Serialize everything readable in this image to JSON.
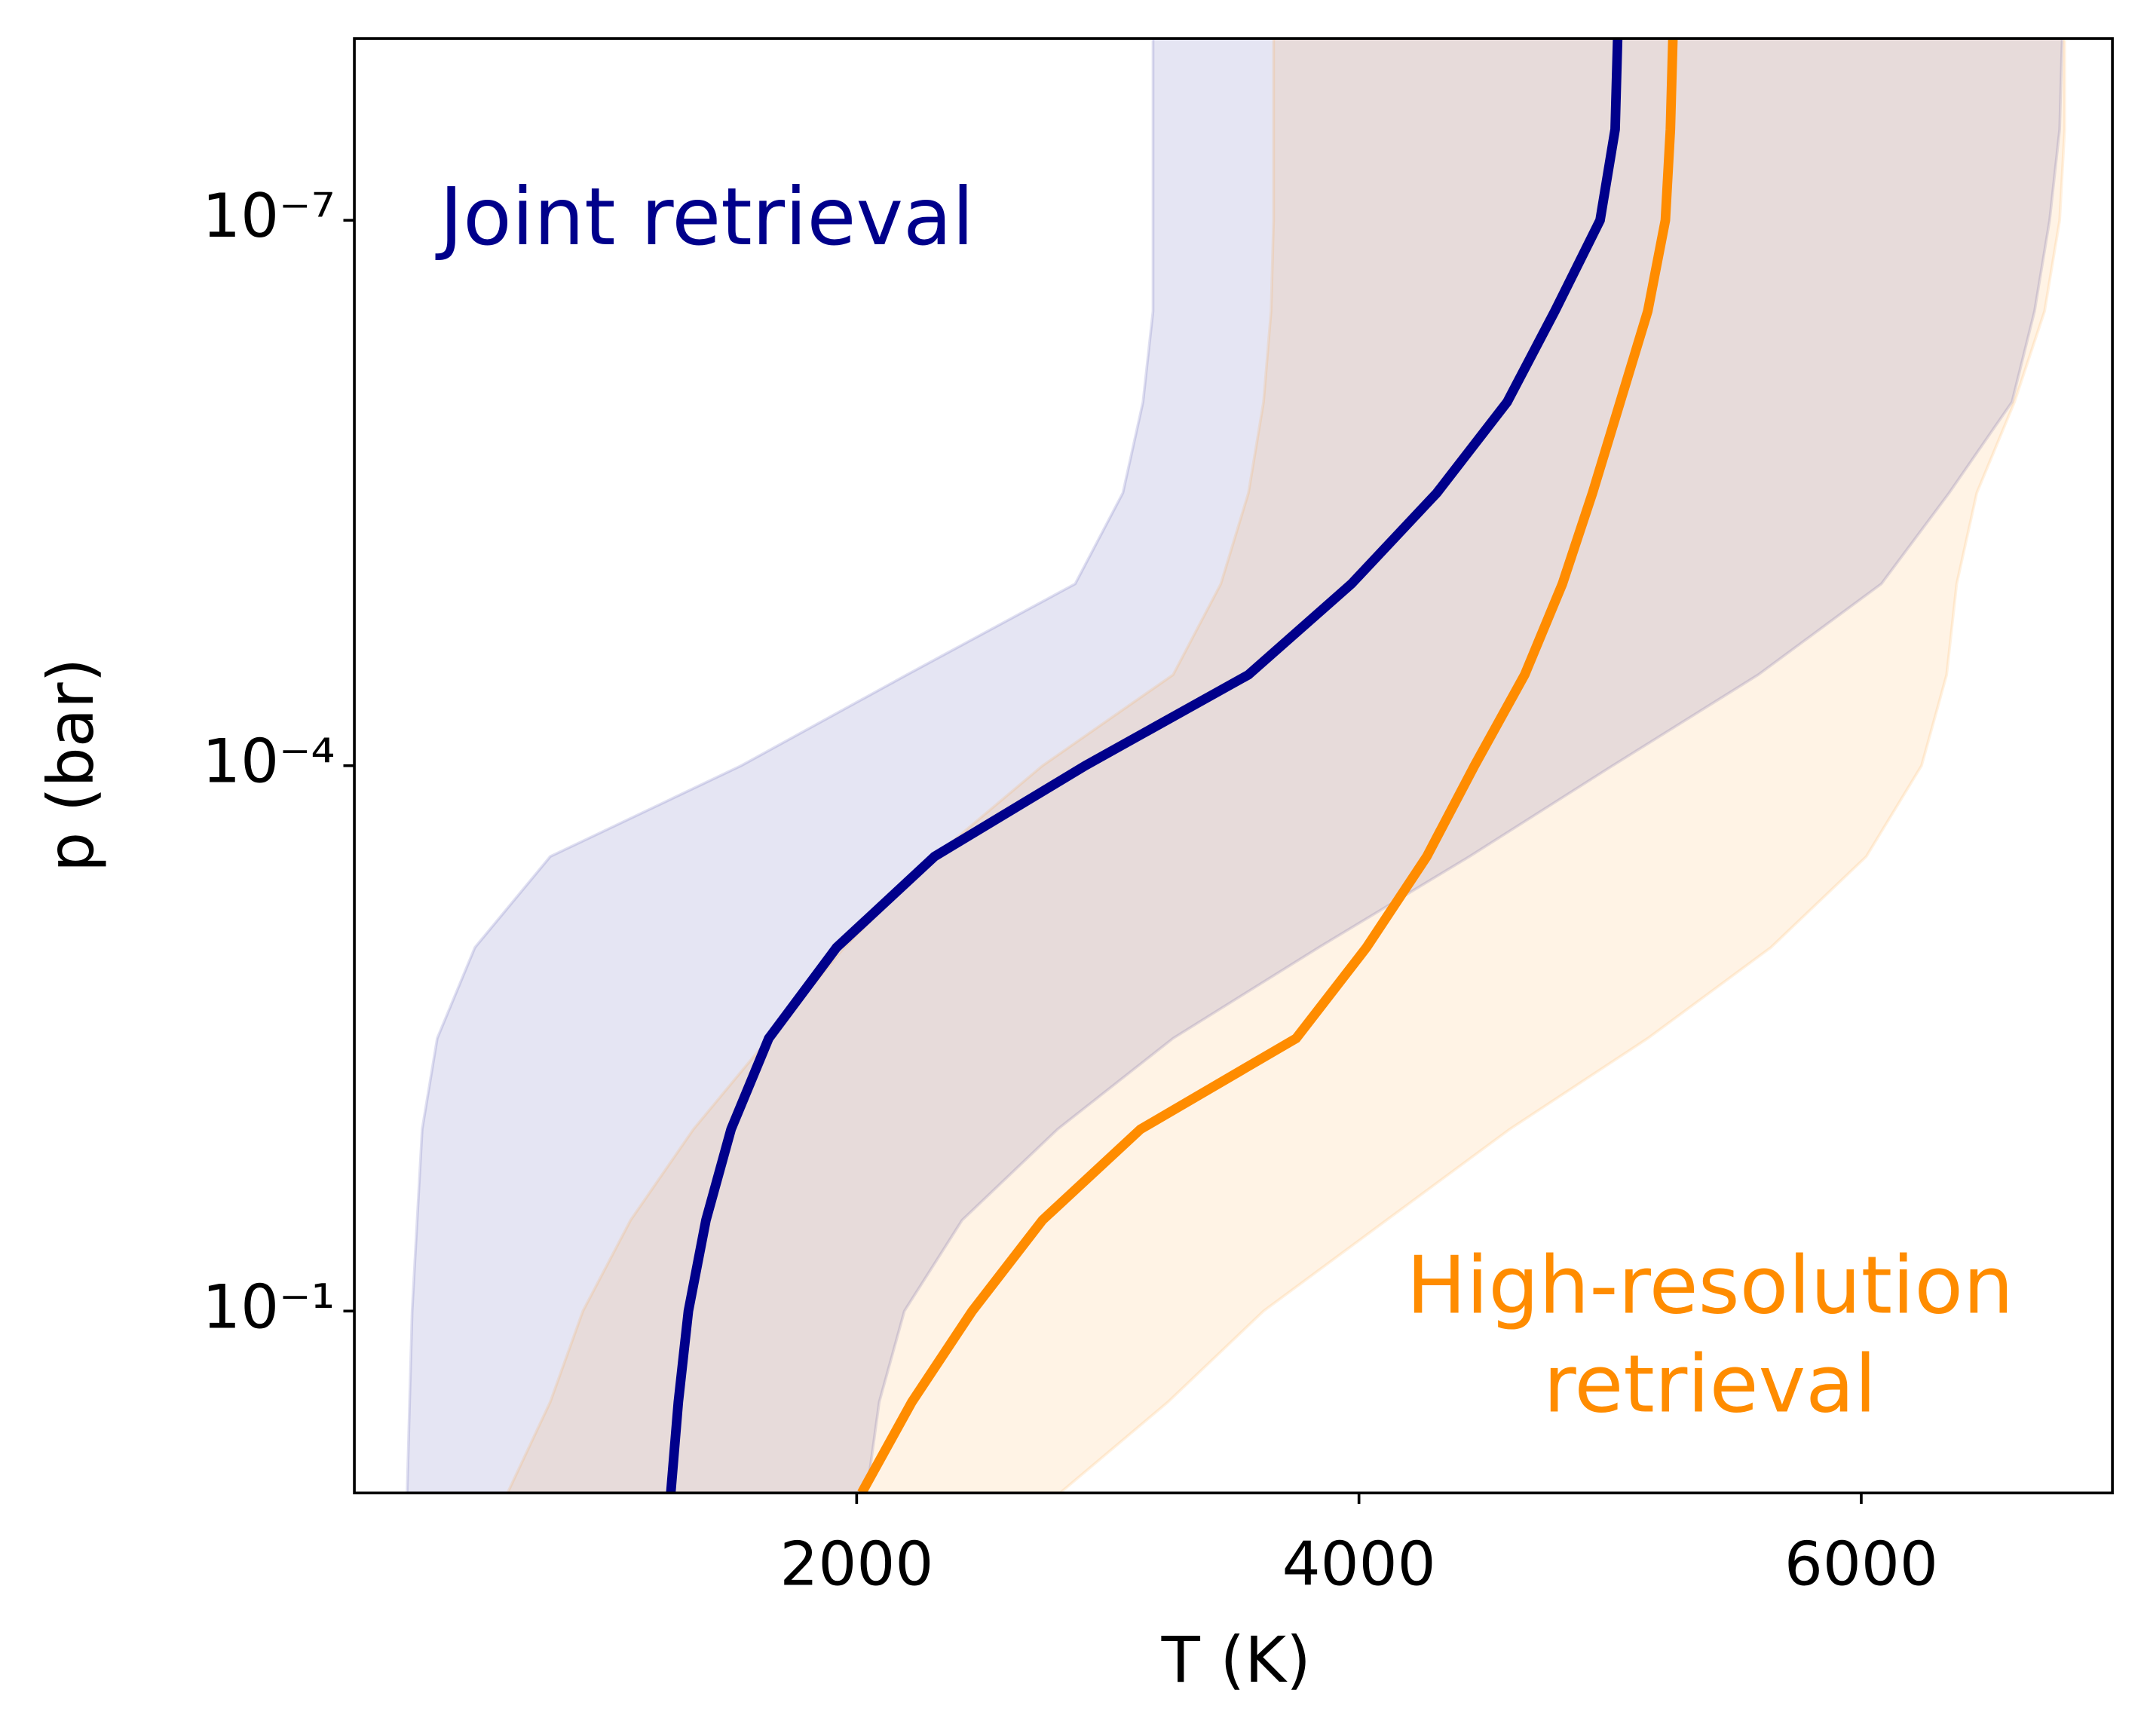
{
  "chart_data": {
    "type": "line",
    "orientation": "horizontal",
    "xlabel": "T (K)",
    "ylabel": "p (bar)",
    "xlim": [
      0,
      7000
    ],
    "xticks": [
      2000,
      4000,
      6000
    ],
    "ylim": [
      1e-08,
      1
    ],
    "y_log": true,
    "y_inverted": true,
    "yticks": [
      {
        "value": 1e-07,
        "label": "10⁻⁷"
      },
      {
        "value": 0.0001,
        "label": "10⁻⁴"
      },
      {
        "value": 0.1,
        "label": "10⁻¹"
      }
    ],
    "grid": false,
    "p": [
      1e-08,
      3.16e-08,
      1e-07,
      3.16e-07,
      1e-06,
      3.16e-06,
      1e-05,
      3.16e-05,
      0.0001,
      0.000316,
      0.001,
      0.00316,
      0.01,
      0.0316,
      0.1,
      0.316,
      1
    ],
    "series": [
      {
        "label_lines": [
          "Joint retrieval"
        ],
        "color": "#00008b",
        "values": [
          5030,
          5020,
          4960,
          4780,
          4590,
          4310,
          3970,
          3560,
          2910,
          2310,
          1920,
          1650,
          1500,
          1400,
          1330,
          1290,
          1260
        ],
        "band_low": [
          3180,
          3180,
          3180,
          3180,
          3140,
          3060,
          2870,
          2200,
          1540,
          780,
          480,
          330,
          270,
          250,
          230,
          220,
          210
        ],
        "band_high": [
          6800,
          6790,
          6750,
          6690,
          6600,
          6350,
          6080,
          5590,
          5010,
          4440,
          3840,
          3260,
          2800,
          2420,
          2190,
          2090,
          2040
        ]
      },
      {
        "label_lines": [
          "High-resolution",
          "retrieval"
        ],
        "color": "#ff8c00",
        "values": [
          5250,
          5240,
          5220,
          5150,
          5040,
          4930,
          4810,
          4660,
          4460,
          4270,
          4030,
          3750,
          3130,
          2740,
          2460,
          2220,
          2020
        ],
        "band_low": [
          3660,
          3660,
          3660,
          3650,
          3620,
          3560,
          3450,
          3260,
          2740,
          2310,
          1950,
          1650,
          1350,
          1100,
          910,
          780,
          610
        ],
        "band_high": [
          6810,
          6810,
          6790,
          6730,
          6610,
          6460,
          6380,
          6340,
          6240,
          6020,
          5640,
          5150,
          4600,
          4110,
          3620,
          3240,
          2810
        ]
      }
    ]
  }
}
